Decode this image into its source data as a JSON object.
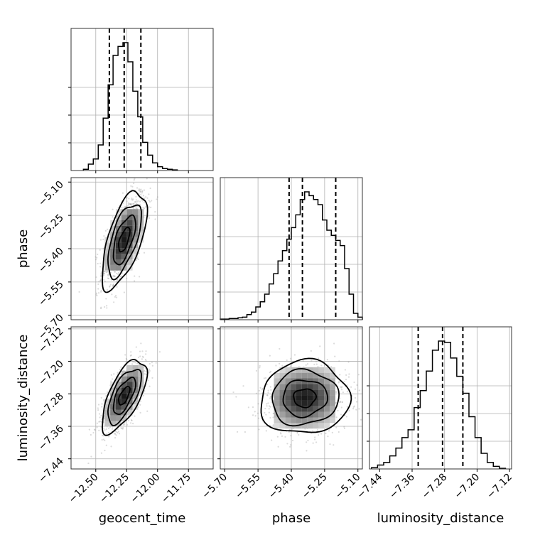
{
  "chart_data": {
    "type": "corner",
    "parameters": [
      "geocent_time",
      "phase",
      "luminosity_distance"
    ],
    "axes": {
      "geocent_time": {
        "label": "geocent_time",
        "range": [
          -12.7,
          -11.55
        ],
        "ticks": [
          -12.5,
          -12.25,
          -12.0,
          -11.75
        ],
        "tick_labels": [
          "−12.50",
          "−12.25",
          "−12.00",
          "−11.75"
        ],
        "quantiles": [
          -12.39,
          -12.27,
          -12.135
        ]
      },
      "phase": {
        "label": "phase",
        "range": [
          -5.72,
          -5.08
        ],
        "ticks": [
          -5.7,
          -5.55,
          -5.4,
          -5.25,
          -5.1
        ],
        "tick_labels": [
          "−5.70",
          "−5.55",
          "−5.40",
          "−5.25",
          "−5.10"
        ],
        "quantiles": [
          -5.41,
          -5.35,
          -5.2
        ]
      },
      "luminosity_distance": {
        "label": "luminosity_distance",
        "range": [
          -7.465,
          -7.115
        ],
        "ticks": [
          -7.44,
          -7.36,
          -7.28,
          -7.2,
          -7.12
        ],
        "tick_labels": [
          "−7.44",
          "−7.36",
          "−7.28",
          "−7.20",
          "−7.12"
        ],
        "quantiles": [
          -7.345,
          -7.285,
          -7.235
        ]
      }
    },
    "histograms": {
      "geocent_time": {
        "bin_edges": [
          -12.6,
          -12.56,
          -12.52,
          -12.48,
          -12.44,
          -12.4,
          -12.36,
          -12.32,
          -12.28,
          -12.24,
          -12.2,
          -12.16,
          -12.12,
          -12.08,
          -12.04,
          -12.0,
          -11.96,
          -11.92,
          -11.88,
          -11.84
        ],
        "counts": [
          0.01,
          0.05,
          0.09,
          0.2,
          0.41,
          0.67,
          0.9,
          0.97,
          1.0,
          0.85,
          0.62,
          0.42,
          0.22,
          0.12,
          0.06,
          0.03,
          0.015,
          0.01,
          0.005
        ]
      },
      "phase": {
        "bin_edges": [
          -5.72,
          -5.7,
          -5.68,
          -5.66,
          -5.64,
          -5.62,
          -5.6,
          -5.58,
          -5.56,
          -5.54,
          -5.52,
          -5.5,
          -5.48,
          -5.46,
          -5.44,
          -5.42,
          -5.4,
          -5.38,
          -5.36,
          -5.34,
          -5.32,
          -5.3,
          -5.28,
          -5.26,
          -5.24,
          -5.22,
          -5.2,
          -5.18,
          -5.16,
          -5.14,
          -5.12,
          -5.1,
          -5.08
        ],
        "counts": [
          0.005,
          0.005,
          0.01,
          0.01,
          0.015,
          0.02,
          0.04,
          0.06,
          0.1,
          0.14,
          0.2,
          0.28,
          0.36,
          0.46,
          0.54,
          0.63,
          0.72,
          0.82,
          0.94,
          1.0,
          0.97,
          0.94,
          0.9,
          0.78,
          0.7,
          0.66,
          0.62,
          0.58,
          0.4,
          0.2,
          0.05,
          0.02
        ]
      },
      "luminosity_distance": {
        "bin_edges": [
          -7.46,
          -7.445,
          -7.43,
          -7.415,
          -7.4,
          -7.385,
          -7.37,
          -7.355,
          -7.34,
          -7.325,
          -7.31,
          -7.295,
          -7.28,
          -7.265,
          -7.25,
          -7.235,
          -7.22,
          -7.205,
          -7.19,
          -7.175,
          -7.16,
          -7.145,
          -7.13
        ],
        "counts": [
          0.01,
          0.03,
          0.05,
          0.1,
          0.16,
          0.24,
          0.3,
          0.47,
          0.6,
          0.75,
          0.91,
          0.98,
          0.97,
          0.85,
          0.71,
          0.58,
          0.4,
          0.24,
          0.12,
          0.05,
          0.02,
          0.005
        ]
      }
    },
    "pairs": [
      {
        "x": "geocent_time",
        "y": "phase",
        "mean": [
          -12.27,
          -5.36
        ],
        "std": [
          0.09,
          0.11
        ],
        "corr": 0.62
      },
      {
        "x": "geocent_time",
        "y": "luminosity_distance",
        "mean": [
          -12.27,
          -7.285
        ],
        "std": [
          0.09,
          0.045
        ],
        "corr": 0.65
      },
      {
        "x": "phase",
        "y": "luminosity_distance",
        "mean": [
          -5.34,
          -7.29
        ],
        "std": [
          0.1,
          0.045
        ],
        "corr": 0.05
      }
    ],
    "grid": true
  }
}
